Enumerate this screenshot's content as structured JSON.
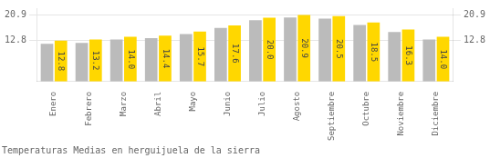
{
  "chart_data": {
    "type": "bar",
    "title": "Temperaturas Medias en herguijuela de la sierra",
    "categories": [
      "Enero",
      "Febrero",
      "Marzo",
      "Abril",
      "Mayo",
      "Junio",
      "Julio",
      "Agosto",
      "Septiembre",
      "Octubre",
      "Noviembre",
      "Diciembre"
    ],
    "series": [
      {
        "color": "#BBBBBB",
        "values": [
          11.8,
          12.1,
          13.2,
          13.6,
          14.9,
          16.8,
          19.2,
          20.1,
          19.7,
          17.7,
          15.5,
          13.2
        ]
      },
      {
        "color": "#FFD700",
        "values": [
          12.8,
          13.2,
          14.0,
          14.4,
          15.7,
          17.6,
          20.0,
          20.9,
          20.5,
          18.5,
          16.3,
          14.0
        ],
        "value_labels": [
          "12.8",
          "13.2",
          "14.0",
          "14.4",
          "15.7",
          "17.6",
          "20.0",
          "20.9",
          "20.5",
          "18.5",
          "16.3",
          "14.0"
        ],
        "data_labels": true
      }
    ],
    "ylim": [
      0,
      23.0
    ],
    "yticks": [
      12.8,
      20.9
    ],
    "y2lim": [
      0,
      23.0
    ],
    "y2ticks": [
      12.8,
      20.9
    ],
    "grid": true
  }
}
